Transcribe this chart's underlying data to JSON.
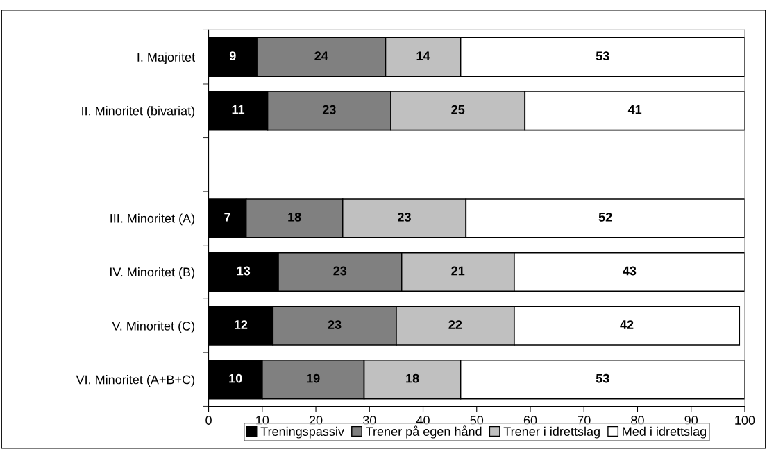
{
  "chart_data": {
    "type": "bar",
    "orientation": "horizontal",
    "stacked": true,
    "data_labels": true,
    "grid": false,
    "legend": "bottom",
    "categories": [
      "I. Majoritet",
      "II. Minoritet (bivariat)",
      null,
      "III. Minoritet (A)",
      "IV. Minoritet (B)",
      "V. Minoritet (C)",
      "VI. Minoritet (A+B+C)"
    ],
    "series": [
      {
        "name": "Treningspassiv",
        "color": "#000000",
        "values": [
          9,
          11,
          null,
          7,
          13,
          12,
          10
        ]
      },
      {
        "name": "Trener på egen hånd",
        "color": "#808080",
        "values": [
          24,
          23,
          null,
          18,
          23,
          23,
          19
        ]
      },
      {
        "name": "Trener i idrettslag",
        "color": "#c0c0c0",
        "values": [
          14,
          25,
          null,
          23,
          21,
          22,
          18
        ]
      },
      {
        "name": "Med i idrettslag",
        "color": "#ffffff",
        "values": [
          53,
          41,
          null,
          52,
          43,
          42,
          53
        ]
      }
    ],
    "xlim": [
      0,
      100
    ],
    "xticks": [
      0,
      10,
      20,
      30,
      40,
      50,
      60,
      70,
      80,
      90,
      100
    ]
  }
}
